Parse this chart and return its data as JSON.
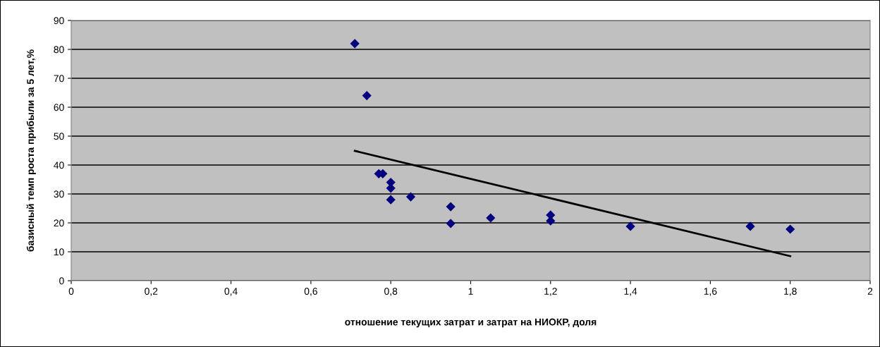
{
  "chart_data": {
    "type": "scatter",
    "xlabel": "отношение текущих затрат и затрат на НИОКР, доля",
    "ylabel": "базисный темп роста прибыли за 5 лет,%",
    "series": [
      {
        "color": "#000080",
        "marker": "diamond",
        "x": [
          0.71,
          0.74,
          0.77,
          0.78,
          0.8,
          0.8,
          0.8,
          0.85,
          0.95,
          0.95,
          1.05,
          1.2,
          1.2,
          1.4,
          1.7,
          1.8
        ],
        "values": [
          82,
          64,
          37,
          37,
          34,
          32,
          28,
          29,
          25.6,
          19.8,
          21.7,
          22.7,
          20.7,
          18.8,
          18.8,
          17.8
        ]
      },
      {
        "type": "line",
        "color": "#000000",
        "x": [
          0.71,
          1.8
        ],
        "values": [
          44.9,
          8.5
        ]
      }
    ],
    "xlim": [
      0,
      2
    ],
    "xticks": [
      0,
      {
        "value": 0.2,
        "label": "0,2"
      },
      {
        "value": 0.4,
        "label": "0,4"
      },
      {
        "value": 0.6,
        "label": "0,6"
      },
      {
        "value": 0.8,
        "label": "0,8"
      },
      1,
      {
        "value": 1.2,
        "label": "1,2"
      },
      {
        "value": 1.4,
        "label": "1,4"
      },
      {
        "value": 1.6,
        "label": "1,6"
      },
      {
        "value": 1.8,
        "label": "1,8"
      },
      2
    ],
    "ylim": [
      0,
      90
    ],
    "yticks": [
      0,
      10,
      20,
      30,
      40,
      50,
      60,
      70,
      80,
      90
    ],
    "grid": "y",
    "legend": false
  }
}
